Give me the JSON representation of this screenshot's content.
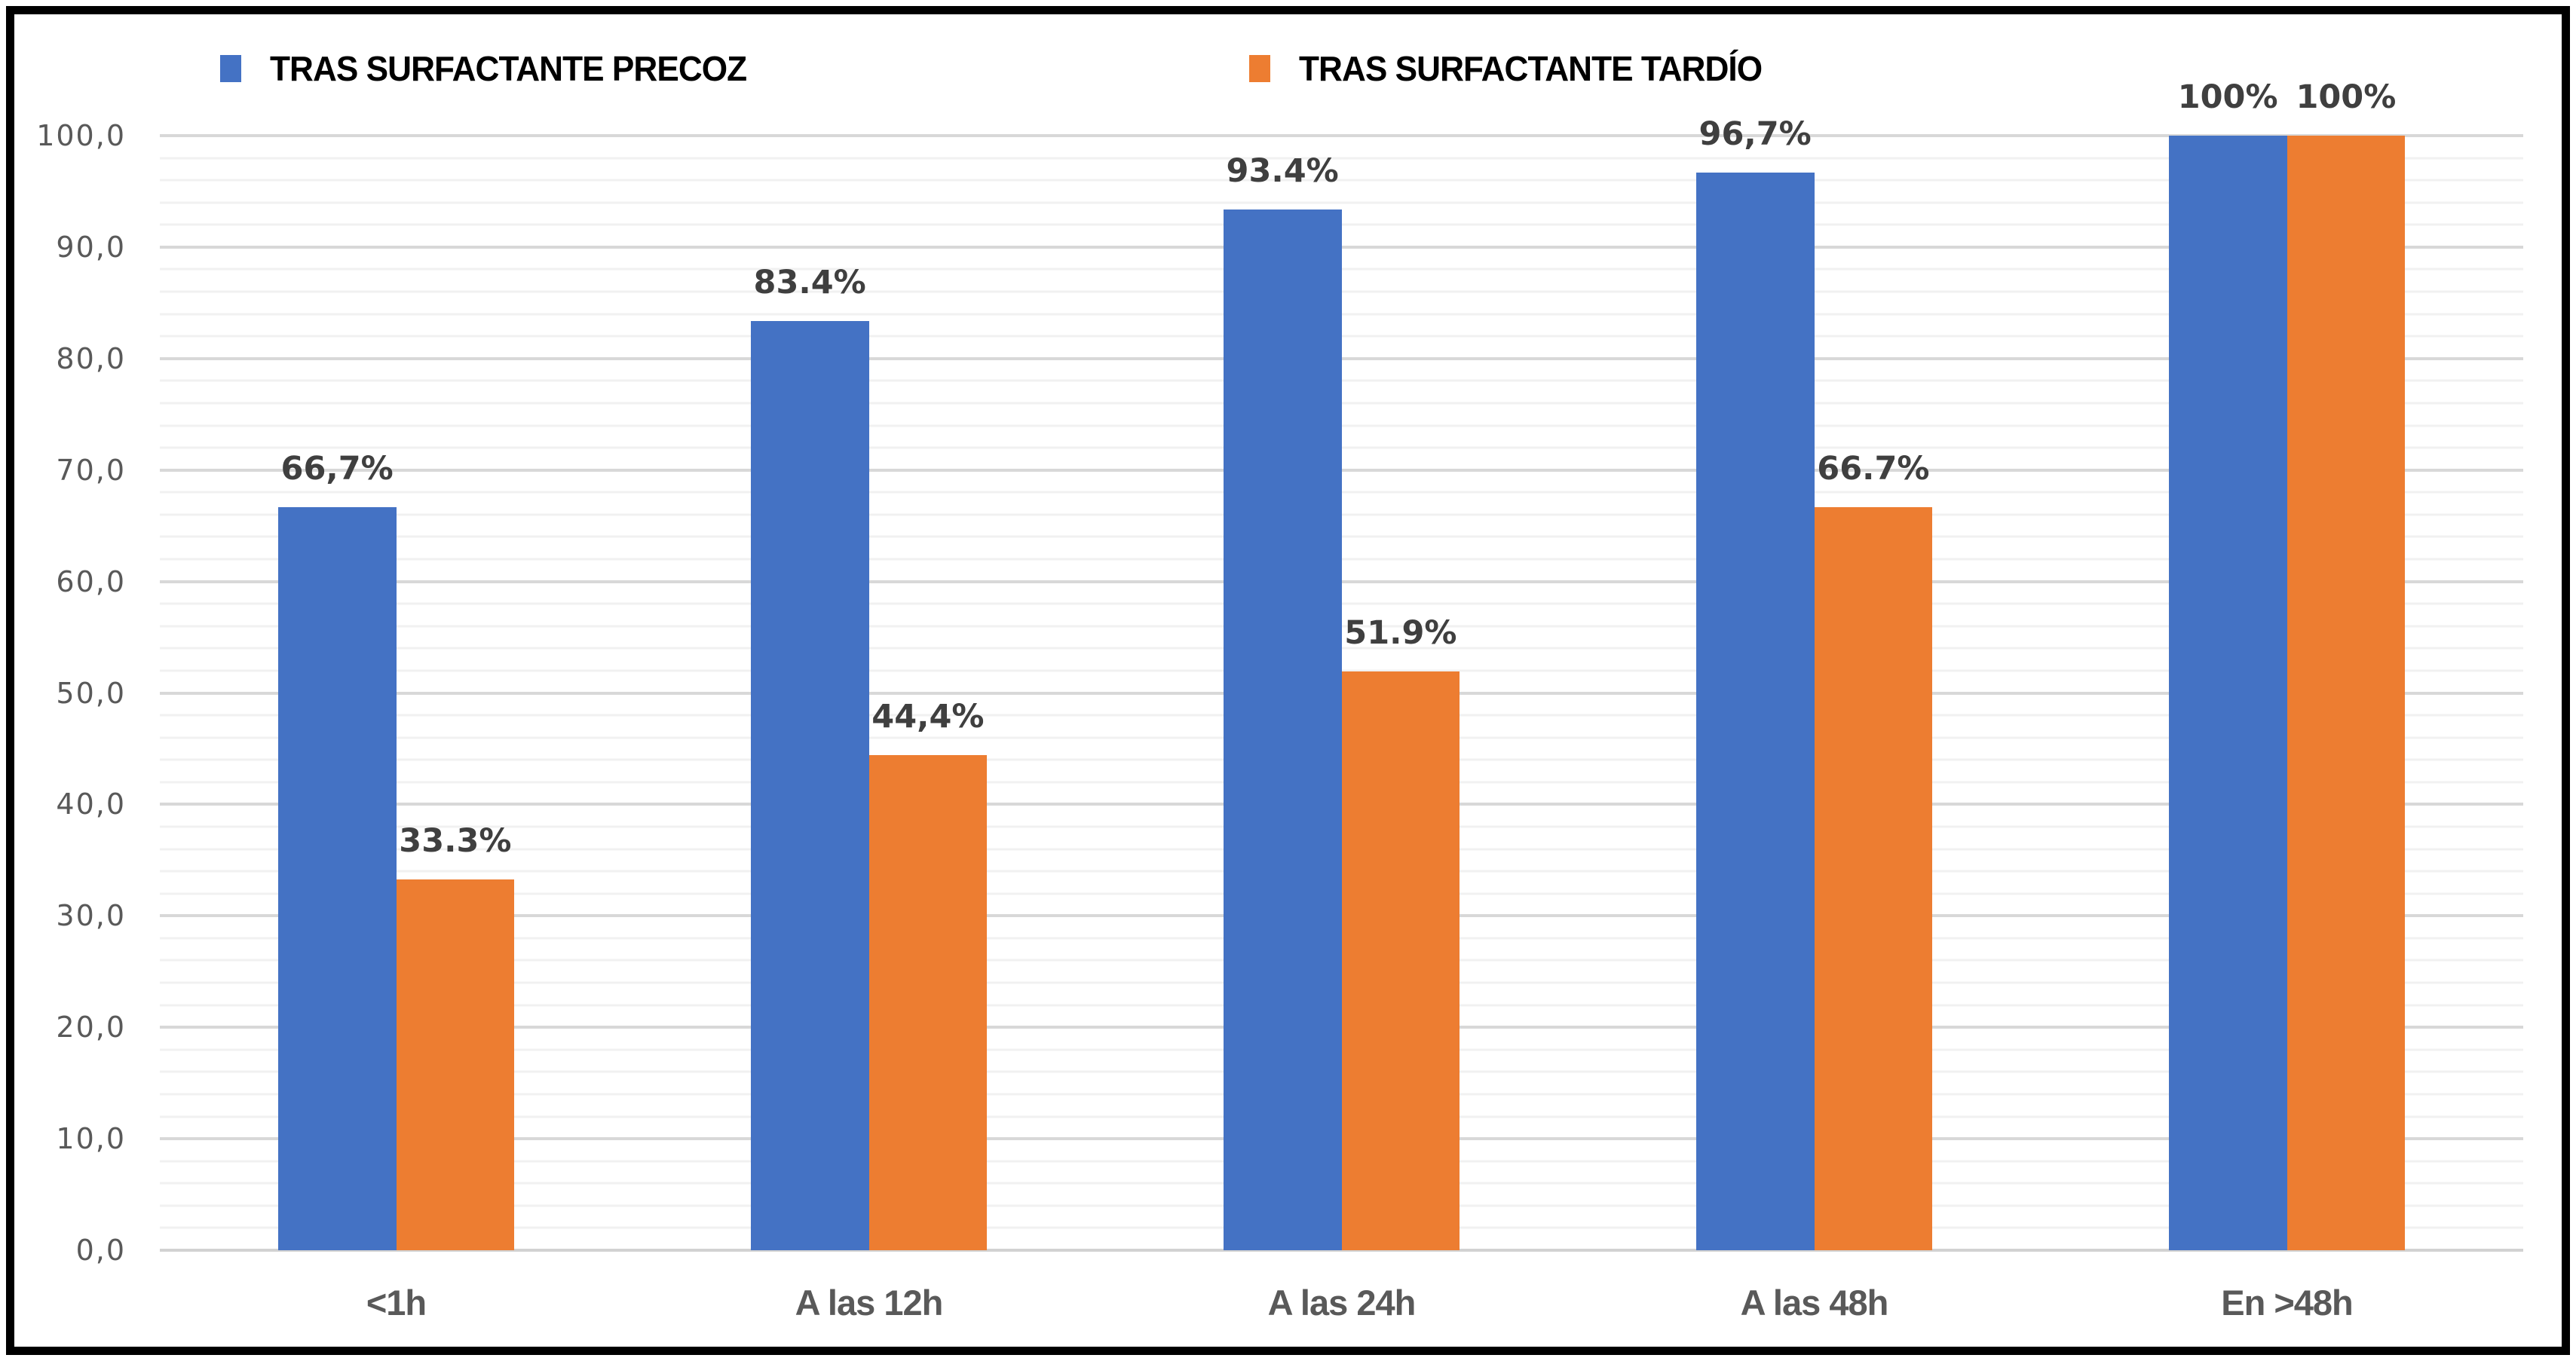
{
  "chart_data": {
    "type": "bar",
    "title": "",
    "categories": [
      "<1h",
      "A las 12h",
      "A las 24h",
      "A las 48h",
      "En >48h"
    ],
    "series": [
      {
        "name": "TRAS SURFACTANTE PRECOZ",
        "color": "#4472C4",
        "values": [
          66.7,
          83.4,
          93.4,
          96.7,
          100
        ],
        "labels": [
          "66,7%",
          "83.4%",
          "93.4%",
          "96,7%",
          "100%"
        ]
      },
      {
        "name": "TRAS SURFACTANTE TARDÍO",
        "color": "#ED7D31",
        "values": [
          33.3,
          44.4,
          51.9,
          66.7,
          100
        ],
        "labels": [
          "33.3%",
          "44,4%",
          "51.9%",
          "66.7%",
          "100%"
        ]
      }
    ],
    "y_axis": {
      "min": 0,
      "max": 100,
      "major_step": 10,
      "minor_step": 2,
      "tick_labels": [
        "0,0",
        "10,0",
        "20,0",
        "30,0",
        "40,0",
        "50,0",
        "60,0",
        "70,0",
        "80,0",
        "90,0",
        "100,0"
      ]
    },
    "xlabel": "",
    "ylabel": "",
    "grid": true,
    "legend_position": "top"
  },
  "colors": {
    "grid_major": "#d8d8d8",
    "grid_minor": "#f1f1f1",
    "axis_line": "#d2d2d2",
    "tick_text": "#595959",
    "data_label_text": "#3f3f3f",
    "legend_text": "#000000",
    "frame_border": "#000000",
    "background": "#ffffff"
  }
}
